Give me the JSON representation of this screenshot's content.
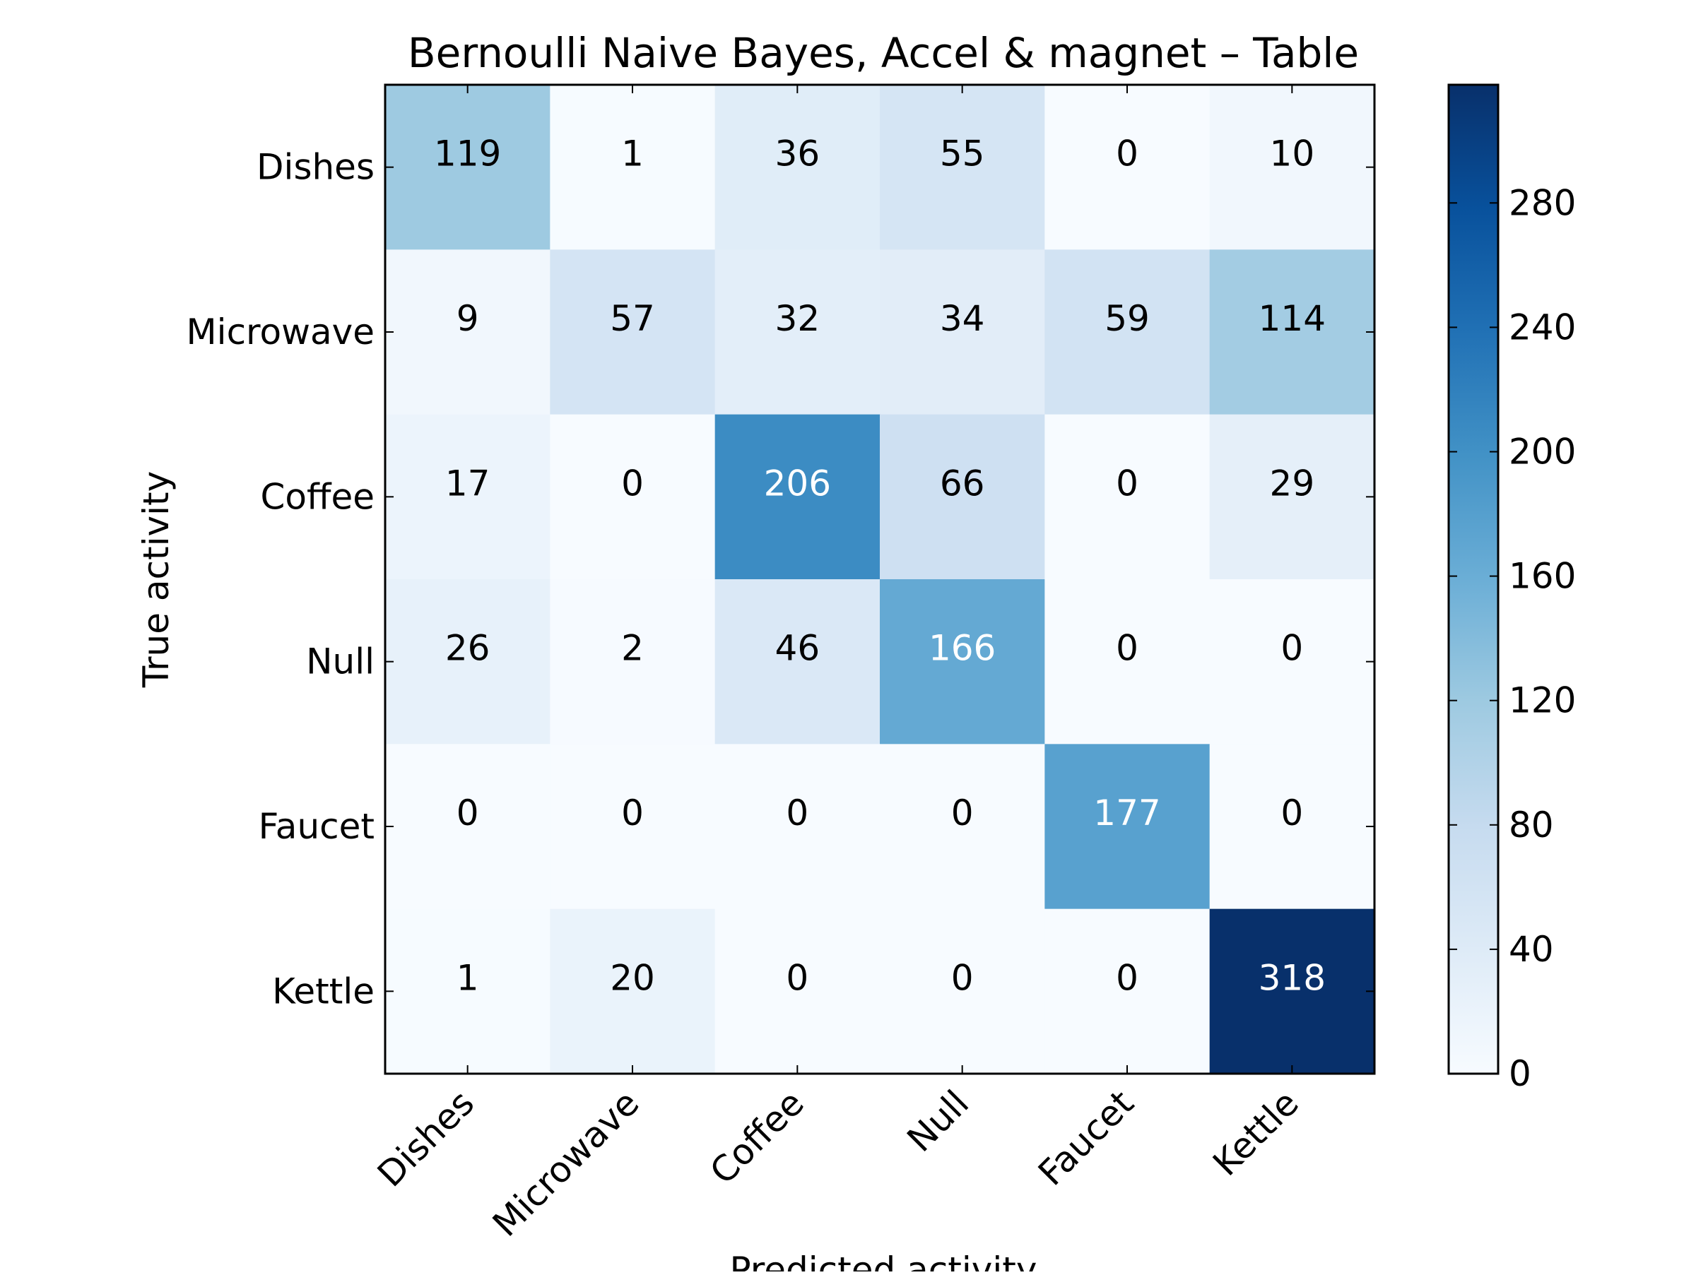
{
  "chart_data": {
    "type": "heatmap",
    "title": "Bernoulli Naive Bayes, Accel & magnet – Table",
    "xlabel": "Predicted activity",
    "ylabel": "True activity",
    "x_categories": [
      "Dishes",
      "Microwave",
      "Coffee",
      "Null",
      "Faucet",
      "Kettle"
    ],
    "y_categories": [
      "Dishes",
      "Microwave",
      "Coffee",
      "Null",
      "Faucet",
      "Kettle"
    ],
    "matrix": [
      [
        119,
        1,
        36,
        55,
        0,
        10
      ],
      [
        9,
        57,
        32,
        34,
        59,
        114
      ],
      [
        17,
        0,
        206,
        66,
        0,
        29
      ],
      [
        26,
        2,
        46,
        166,
        0,
        0
      ],
      [
        0,
        0,
        0,
        0,
        177,
        0
      ],
      [
        1,
        20,
        0,
        0,
        0,
        318
      ]
    ],
    "colormap": "Blues",
    "color_low": "#f7fbff",
    "color_high": "#08306b",
    "colorbar": {
      "range": [
        0,
        318
      ],
      "ticks": [
        "0",
        "40",
        "80",
        "120",
        "160",
        "200",
        "240",
        "280"
      ]
    }
  }
}
